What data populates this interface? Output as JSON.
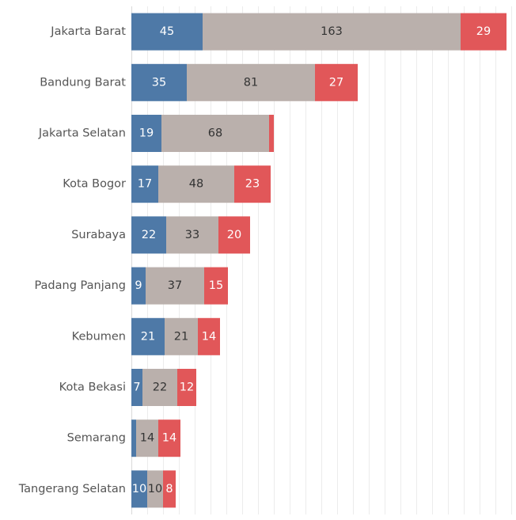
{
  "chart_data": {
    "type": "bar",
    "orientation": "horizontal",
    "stacked": true,
    "grid": true,
    "legend": "none",
    "categories": [
      "Jakarta Barat",
      "Bandung Barat",
      "Jakarta Selatan",
      "Kota Bogor",
      "Surabaya",
      "Padang Panjang",
      "Kebumen",
      "Kota Bekasi",
      "Semarang",
      "Tangerang Selatan"
    ],
    "series": [
      {
        "values": [
          45,
          35,
          19,
          17,
          22,
          9,
          21,
          7,
          3,
          10
        ],
        "labels": [
          "45",
          "35",
          "19",
          "17",
          "22",
          "9",
          "21",
          "7",
          "",
          "10"
        ],
        "color": "#4e79a7",
        "label_color": "#ffffff"
      },
      {
        "values": [
          163,
          81,
          68,
          48,
          33,
          37,
          21,
          22,
          14,
          10
        ],
        "labels": [
          "163",
          "81",
          "68",
          "48",
          "33",
          "37",
          "21",
          "22",
          "14",
          "10"
        ],
        "color": "#bab0ac",
        "label_color": "#333333"
      },
      {
        "values": [
          29,
          27,
          3,
          23,
          20,
          15,
          14,
          12,
          14,
          8
        ],
        "labels": [
          "29",
          "27",
          "",
          "23",
          "20",
          "15",
          "14",
          "12",
          "14",
          "8"
        ],
        "color": "#e15759",
        "label_color": "#ffffff"
      }
    ],
    "xlim": [
      0,
      240
    ],
    "gridline_step": 10,
    "title": "",
    "xlabel": "",
    "ylabel": ""
  }
}
